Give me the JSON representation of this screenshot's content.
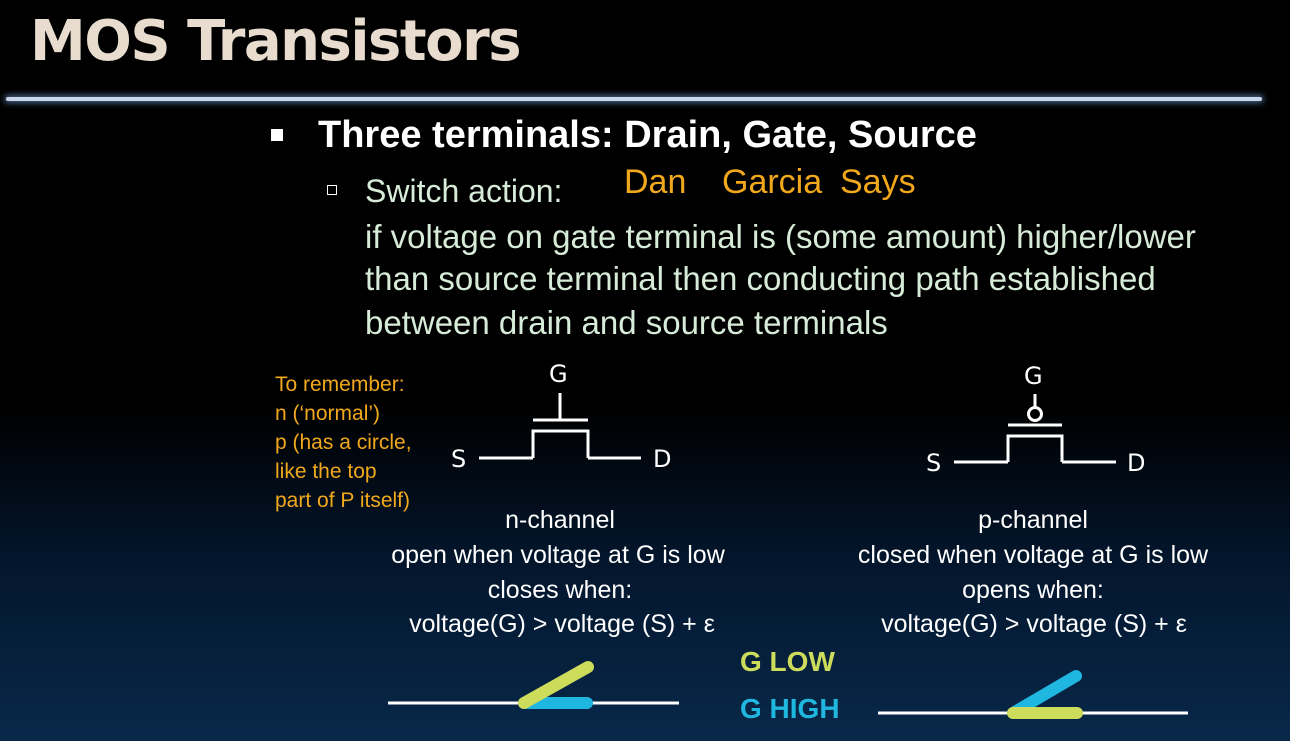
{
  "title": "MOS Transistors",
  "bullet": "Three terminals: Drain, Gate, Source",
  "sub_bullet": "Switch action:",
  "annotation": {
    "w1": "Dan",
    "w2": "Garcia",
    "w3": "Says"
  },
  "body_lines": [
    "if voltage on gate terminal is (some amount) higher/lower",
    "than source terminal then conducting path established",
    "between drain and source terminals"
  ],
  "remember_lines": [
    "To remember:",
    "n (‘normal’)",
    "p (has a circle,",
    "like the top",
    "part of P itself)"
  ],
  "n_channel": {
    "gate": "G",
    "source": "S",
    "drain": "D",
    "caption": [
      "n-channel",
      "open when voltage at G is low",
      "closes when:",
      "voltage(G) > voltage (S) + ε"
    ]
  },
  "p_channel": {
    "gate": "G",
    "source": "S",
    "drain": "D",
    "caption": [
      "p-channel",
      "closed when voltage at G is low",
      "opens when:",
      "voltage(G) > voltage (S) + ε"
    ]
  },
  "legend": {
    "low": "G LOW",
    "high": "G HIGH"
  },
  "colors": {
    "title": "#e7dccd",
    "body_text": "#d7ecd8",
    "annotation": "#f2a81c",
    "g_low": "#cddc5a",
    "g_high": "#1fb6e0"
  }
}
